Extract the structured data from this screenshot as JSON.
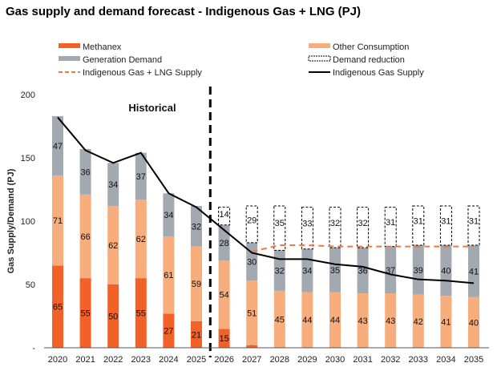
{
  "title": "Gas supply and demand forecast - Indigenous Gas + LNG (PJ)",
  "chart_data": {
    "type": "bar",
    "stacked": true,
    "title": "Gas supply and demand forecast - Indigenous Gas + LNG (PJ)",
    "xlabel": "",
    "ylabel": "Gas Supply/Demand (PJ)",
    "ylim": [
      0,
      200
    ],
    "yticks": [
      0,
      50,
      100,
      150,
      200
    ],
    "ytick_labels": [
      "-",
      "50",
      "100",
      "150",
      "200"
    ],
    "categories": [
      "2020",
      "2021",
      "2022",
      "2023",
      "2024",
      "2025",
      "2026",
      "2027",
      "2028",
      "2029",
      "2030",
      "2031",
      "2032",
      "2033",
      "2034",
      "2035"
    ],
    "annotation": "Historical",
    "divider_after": "2025",
    "legend_position": "top",
    "series": [
      {
        "name": "Methanex",
        "kind": "bar",
        "color": "#f26128",
        "values": [
          65,
          55,
          50,
          55,
          27,
          21,
          15,
          2,
          0,
          0,
          0,
          0,
          0,
          0,
          0,
          0
        ],
        "labels": [
          "65",
          "55",
          "50",
          "55",
          "27",
          "21",
          "15",
          "2",
          "",
          "",
          "",
          "",
          "",
          "",
          "",
          ""
        ]
      },
      {
        "name": "Other Consumption",
        "kind": "bar",
        "color": "#f8ad7c",
        "values": [
          71,
          66,
          62,
          62,
          61,
          59,
          54,
          51,
          45,
          44,
          44,
          43,
          43,
          42,
          41,
          40
        ],
        "labels": [
          "71",
          "66",
          "62",
          "62",
          "61",
          "59",
          "54",
          "51",
          "45",
          "44",
          "44",
          "43",
          "43",
          "42",
          "41",
          "40"
        ]
      },
      {
        "name": "Generation Demand",
        "kind": "bar",
        "color": "#a3a9b0",
        "values": [
          47,
          36,
          34,
          37,
          34,
          32,
          28,
          30,
          32,
          34,
          35,
          36,
          37,
          39,
          40,
          41
        ],
        "labels": [
          "47",
          "36",
          "34",
          "37",
          "34",
          "32",
          "28",
          "30",
          "32",
          "34",
          "35",
          "36",
          "37",
          "39",
          "40",
          "41"
        ]
      },
      {
        "name": "Demand reduction",
        "kind": "bar-outline",
        "color": "#000000",
        "values": [
          0,
          0,
          0,
          0,
          0,
          0,
          14,
          29,
          35,
          33,
          32,
          32,
          31,
          31,
          31,
          31
        ],
        "labels": [
          "",
          "",
          "",
          "",
          "",
          "",
          "14",
          "29",
          "35",
          "33",
          "32",
          "32",
          "31",
          "31",
          "31",
          "31"
        ]
      },
      {
        "name": "Indigenous Gas + LNG Supply",
        "kind": "dashed-line",
        "color": "#ef7a3c",
        "values": [
          null,
          null,
          null,
          null,
          null,
          null,
          null,
          76,
          81,
          81,
          80,
          80,
          80,
          80,
          80,
          80
        ]
      },
      {
        "name": "Indigenous Gas Supply",
        "kind": "line",
        "color": "#000000",
        "values": [
          182,
          156,
          146,
          154,
          122,
          111,
          93,
          75,
          70,
          70,
          66,
          64,
          58,
          54,
          53,
          51
        ]
      }
    ]
  }
}
